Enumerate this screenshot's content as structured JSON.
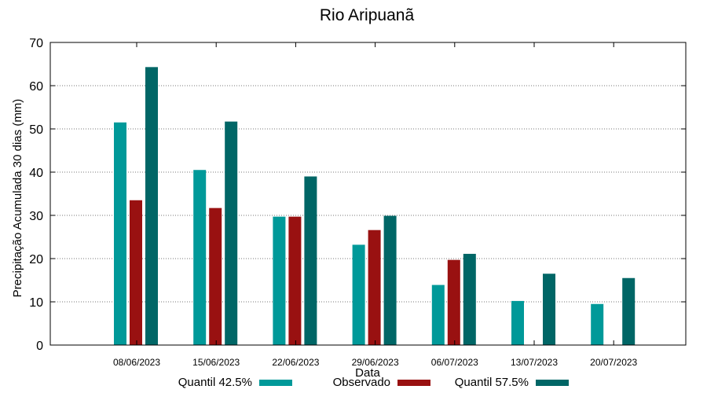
{
  "chart_data": {
    "type": "bar",
    "title": "Rio Aripuanã",
    "xlabel": "Data",
    "ylabel": "Precipitação Acumulada 30 dias (mm)",
    "ylim": [
      0,
      70
    ],
    "yticks": [
      0,
      10,
      20,
      30,
      40,
      50,
      60,
      70
    ],
    "grid": true,
    "legend_position": "bottom",
    "categories": [
      "08/06/2023",
      "15/06/2023",
      "22/06/2023",
      "29/06/2023",
      "06/07/2023",
      "13/07/2023",
      "20/07/2023"
    ],
    "series": [
      {
        "name": "Quantil 42.5%",
        "color": "#009999",
        "values": [
          51.5,
          40.5,
          29.7,
          23.2,
          13.9,
          10.2,
          9.5
        ]
      },
      {
        "name": "Observado",
        "color": "#991111",
        "values": [
          33.5,
          31.7,
          29.7,
          26.6,
          19.7,
          null,
          null
        ]
      },
      {
        "name": "Quantil 57.5%",
        "color": "#006666",
        "values": [
          64.3,
          51.7,
          39.0,
          29.9,
          21.1,
          16.5,
          15.5
        ]
      }
    ]
  }
}
